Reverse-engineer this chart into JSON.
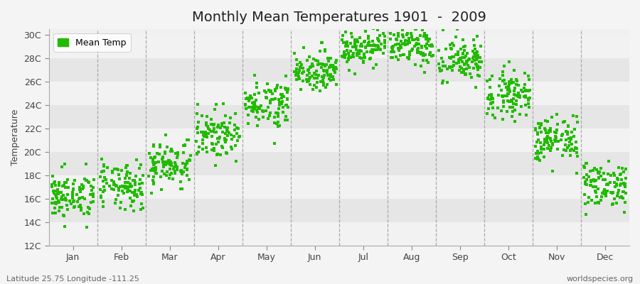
{
  "title": "Monthly Mean Temperatures 1901  -  2009",
  "ylabel": "Temperature",
  "x_tick_labels": [
    "Jan",
    "Feb",
    "Mar",
    "Apr",
    "May",
    "Jun",
    "Jul",
    "Aug",
    "Sep",
    "Oct",
    "Nov",
    "Dec"
  ],
  "x_tick_positions": [
    0.5,
    1.5,
    2.5,
    3.5,
    4.5,
    5.5,
    6.5,
    7.5,
    8.5,
    9.5,
    10.5,
    11.5
  ],
  "y_tick_labels": [
    "12C",
    "14C",
    "16C",
    "18C",
    "20C",
    "22C",
    "24C",
    "26C",
    "28C",
    "30C"
  ],
  "y_tick_values": [
    12,
    14,
    16,
    18,
    20,
    22,
    24,
    26,
    28,
    30
  ],
  "ylim": [
    12,
    30.5
  ],
  "xlim": [
    0,
    12
  ],
  "scatter_color": "#22BB00",
  "marker_size": 8,
  "bg_color": "#f4f4f4",
  "plot_bg_color": "#f0f0f0",
  "band_color_light": "#f2f2f2",
  "band_color_dark": "#e6e6e6",
  "legend_label": "Mean Temp",
  "footer_left": "Latitude 25.75 Longitude -111.25",
  "footer_right": "worldspecies.org",
  "title_fontsize": 14,
  "axis_fontsize": 9,
  "tick_fontsize": 9,
  "footer_fontsize": 8,
  "months_mean": [
    16.2,
    17.0,
    19.0,
    21.5,
    24.2,
    27.0,
    29.0,
    29.0,
    27.8,
    25.0,
    21.0,
    17.2
  ],
  "months_std": [
    1.0,
    1.0,
    1.0,
    1.0,
    1.0,
    0.8,
    0.8,
    0.8,
    1.0,
    1.0,
    1.0,
    1.0
  ],
  "n_years": 109,
  "seed": 42
}
